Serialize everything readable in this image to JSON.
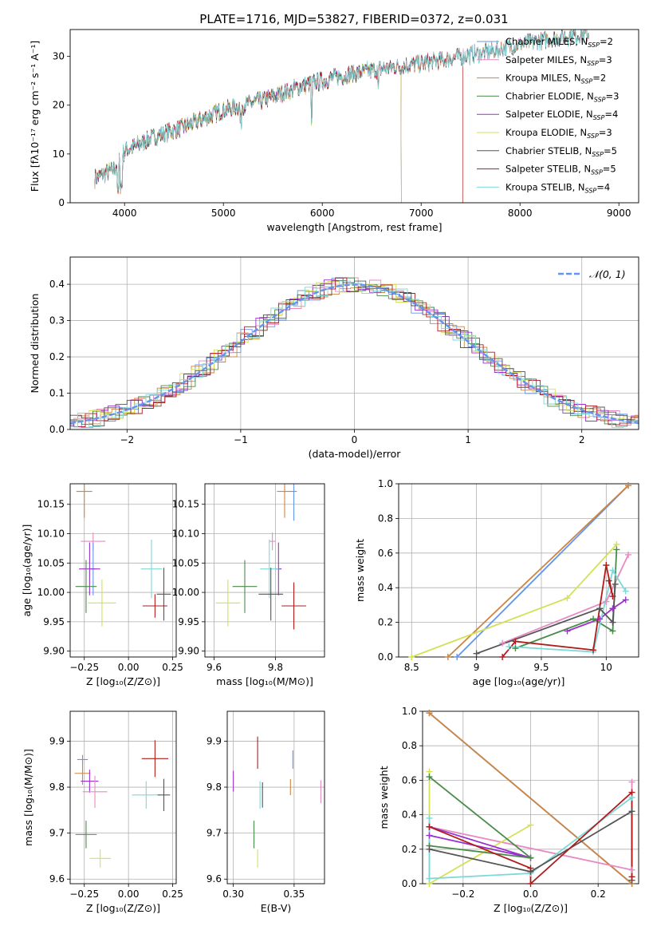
{
  "figure_title": "PLATE=1716, MJD=53827, FIBERID=0372, z=0.031",
  "colors": {
    "chabrier_miles": "#6495ed",
    "salpeter_miles": "#e78ac3",
    "kroupa_miles": "#cd853f",
    "chabrier_elodie": "#4a8a4a",
    "salpeter_elodie": "#9932cc",
    "kroupa_elodie": "#d4e157",
    "chabrier_stelib": "#555555",
    "salpeter_stelib": "#b01c1c",
    "kroupa_stelib": "#7fd8d8"
  },
  "chart_data": [
    {
      "id": "spectrum",
      "type": "line",
      "title": "PLATE=1716, MJD=53827, FIBERID=0372, z=0.031",
      "xlabel": "wavelength [Angstrom, rest frame]",
      "ylabel": "Flux [fλ10⁻¹⁷ erg cm⁻² s⁻¹ A⁻¹]",
      "xlim": [
        3450,
        9200
      ],
      "ylim": [
        0,
        35.5
      ],
      "xticks": [
        4000,
        5000,
        6000,
        7000,
        8000,
        9000
      ],
      "yticks": [
        0,
        10,
        20,
        30
      ],
      "legend_position": "top-right",
      "continuum_points": {
        "x": [
          3700,
          3900,
          4000,
          4300,
          4600,
          5000,
          5400,
          5800,
          6200,
          6600,
          7000,
          7400,
          7700,
          8000,
          8300,
          8600
        ],
        "y": [
          5,
          7,
          10.5,
          13.5,
          15.5,
          19,
          21,
          24,
          26,
          27.5,
          28.5,
          30,
          31,
          32.5,
          33.5,
          34.5
        ]
      },
      "series": [
        {
          "name": "Chabrier MILES, N_SSP=2",
          "color_key": "chabrier_miles",
          "x_range": [
            3700,
            8700
          ]
        },
        {
          "name": "Salpeter MILES, N_SSP=3",
          "color_key": "salpeter_miles",
          "x_range": [
            3700,
            8700
          ]
        },
        {
          "name": "Kroupa MILES, N_SSP=2",
          "color_key": "kroupa_miles",
          "x_range": [
            3700,
            8700
          ]
        },
        {
          "name": "Chabrier ELODIE, N_SSP=3",
          "color_key": "chabrier_elodie",
          "x_range": [
            3700,
            6800
          ]
        },
        {
          "name": "Salpeter ELODIE, N_SSP=4",
          "color_key": "salpeter_elodie",
          "x_range": [
            3700,
            6800
          ]
        },
        {
          "name": "Kroupa ELODIE, N_SSP=3",
          "color_key": "kroupa_elodie",
          "x_range": [
            3700,
            6800
          ]
        },
        {
          "name": "Chabrier STELIB, N_SSP=5",
          "color_key": "chabrier_stelib",
          "x_range": [
            3700,
            8700
          ]
        },
        {
          "name": "Salpeter STELIB, N_SSP=5",
          "color_key": "salpeter_stelib",
          "x_range": [
            3700,
            7420
          ]
        },
        {
          "name": "Kroupa STELIB, N_SSP=4",
          "color_key": "kroupa_stelib",
          "x_range": [
            3700,
            8700
          ]
        }
      ]
    },
    {
      "id": "residuals",
      "type": "line",
      "xlabel": "(data-model)/error",
      "ylabel": "Normed distribution",
      "xlim": [
        -2.5,
        2.5
      ],
      "ylim": [
        0,
        0.475
      ],
      "xticks": [
        -2,
        -1,
        0,
        1,
        2
      ],
      "yticks": [
        0.0,
        0.1,
        0.2,
        0.3,
        0.4
      ],
      "grid": true,
      "legend_position": "top-right",
      "reference": {
        "name": "𝒩(0, 1)",
        "color_key": "chabrier_miles",
        "style": "dashed",
        "mu": 0,
        "sigma": 1
      }
    },
    {
      "id": "age_vs_Z",
      "type": "scatter",
      "xlabel": "Z [log₁₀(Z/Z⊙)]",
      "ylabel": "age  [log₁₀(age/yr)]",
      "xlim": [
        -0.33,
        0.27
      ],
      "ylim": [
        9.89,
        10.185
      ],
      "xticks": [
        -0.25,
        0.0,
        0.25
      ],
      "xtick_labels": [
        "−0.25",
        "0.00",
        "0.25"
      ],
      "yticks": [
        9.9,
        9.95,
        10.0,
        10.05,
        10.1,
        10.15
      ],
      "grid": true,
      "points": [
        {
          "color_key": "kroupa_miles",
          "x": -0.25,
          "xerr": 0.045,
          "y": 10.172,
          "yerr": 0.09
        },
        {
          "color_key": "salpeter_miles",
          "x": -0.2,
          "xerr": 0.07,
          "y": 10.087,
          "yerr": 0.03
        },
        {
          "color_key": "chabrier_miles",
          "x": -0.2,
          "xerr": 0.015,
          "y": 10.04,
          "yerr": 0.09
        },
        {
          "color_key": "salpeter_elodie",
          "x": -0.22,
          "xerr": 0.06,
          "y": 10.04,
          "yerr": 0.09
        },
        {
          "color_key": "chabrier_elodie",
          "x": -0.24,
          "xerr": 0.06,
          "y": 10.01,
          "yerr": 0.09
        },
        {
          "color_key": "kroupa_elodie",
          "x": -0.15,
          "xerr": 0.08,
          "y": 9.982,
          "yerr": 0.08
        },
        {
          "color_key": "kroupa_stelib",
          "x": 0.13,
          "xerr": 0.06,
          "y": 10.04,
          "yerr": 0.1
        },
        {
          "color_key": "chabrier_stelib",
          "x": 0.2,
          "xerr": 0.04,
          "y": 9.997,
          "yerr": 0.09
        },
        {
          "color_key": "salpeter_stelib",
          "x": 0.15,
          "xerr": 0.07,
          "y": 9.977,
          "yerr": 0.04
        }
      ]
    },
    {
      "id": "age_vs_mass",
      "type": "scatter",
      "xlabel": "mass [log₁₀(M/M⊙)]",
      "ylabel": "",
      "xlim": [
        9.57,
        9.96
      ],
      "ylim": [
        9.89,
        10.185
      ],
      "xticks": [
        9.6,
        9.8
      ],
      "yticks": [
        9.9,
        9.95,
        10.0,
        10.05,
        10.1,
        10.15
      ],
      "grid": true,
      "points": [
        {
          "color_key": "chabrier_miles",
          "x": 9.86,
          "xerr": 0.01,
          "y": 10.172,
          "yerr": 0.1
        },
        {
          "color_key": "kroupa_miles",
          "x": 9.83,
          "xerr": 0.025,
          "y": 10.172,
          "yerr": 0.09
        },
        {
          "color_key": "salpeter_miles",
          "x": 9.79,
          "xerr": 0.01,
          "y": 10.087,
          "yerr": 0.03
        },
        {
          "color_key": "salpeter_elodie",
          "x": 9.81,
          "xerr": 0.01,
          "y": 10.04,
          "yerr": 0.09
        },
        {
          "color_key": "kroupa_stelib",
          "x": 9.78,
          "xerr": 0.03,
          "y": 10.04,
          "yerr": 0.1
        },
        {
          "color_key": "chabrier_elodie",
          "x": 9.7,
          "xerr": 0.04,
          "y": 10.01,
          "yerr": 0.09
        },
        {
          "color_key": "kroupa_elodie",
          "x": 9.645,
          "xerr": 0.04,
          "y": 9.982,
          "yerr": 0.08
        },
        {
          "color_key": "chabrier_stelib",
          "x": 9.785,
          "xerr": 0.04,
          "y": 9.997,
          "yerr": 0.09
        },
        {
          "color_key": "salpeter_stelib",
          "x": 9.86,
          "xerr": 0.04,
          "y": 9.977,
          "yerr": 0.08
        }
      ]
    },
    {
      "id": "mass_weight_vs_age",
      "type": "line",
      "xlabel": "age  [log₁₀(age/yr)]",
      "ylabel": "mass weight",
      "xlim": [
        8.4,
        10.25
      ],
      "ylim": [
        0,
        1.0
      ],
      "xticks": [
        8.5,
        9.0,
        9.5,
        10.0
      ],
      "yticks": [
        0.0,
        0.2,
        0.4,
        0.6,
        0.8,
        1.0
      ],
      "grid": true,
      "series": [
        {
          "color_key": "chabrier_miles",
          "x": [
            8.85,
            10.17
          ],
          "y": [
            0.0,
            0.99
          ]
        },
        {
          "color_key": "kroupa_miles",
          "x": [
            8.78,
            10.17
          ],
          "y": [
            0.0,
            0.99
          ]
        },
        {
          "color_key": "salpeter_miles",
          "x": [
            9.2,
            10.0,
            10.17
          ],
          "y": [
            0.08,
            0.32,
            0.59
          ]
        },
        {
          "color_key": "kroupa_elodie",
          "x": [
            8.5,
            9.7,
            10.08
          ],
          "y": [
            0.0,
            0.34,
            0.65
          ]
        },
        {
          "color_key": "salpeter_elodie",
          "x": [
            9.7,
            9.95,
            10.05,
            10.15
          ],
          "y": [
            0.15,
            0.22,
            0.28,
            0.33
          ]
        },
        {
          "color_key": "chabrier_elodie",
          "x": [
            9.3,
            9.9,
            10.05,
            10.08
          ],
          "y": [
            0.05,
            0.22,
            0.15,
            0.62
          ]
        },
        {
          "color_key": "kroupa_stelib",
          "x": [
            9.25,
            9.9,
            10.05,
            10.15
          ],
          "y": [
            0.06,
            0.03,
            0.5,
            0.38
          ]
        },
        {
          "color_key": "chabrier_stelib",
          "x": [
            9.0,
            9.95,
            10.05,
            10.07
          ],
          "y": [
            0.02,
            0.28,
            0.2,
            0.42
          ]
        },
        {
          "color_key": "salpeter_stelib",
          "x": [
            9.2,
            9.3,
            9.9,
            10.0,
            10.05,
            10.02
          ],
          "y": [
            0.0,
            0.09,
            0.04,
            0.53,
            0.35,
            0.44
          ]
        }
      ]
    },
    {
      "id": "mass_vs_Z",
      "type": "scatter",
      "xlabel": "Z [log₁₀(Z/Z⊙)]",
      "ylabel": "mass [log₁₀(M/M⊙)]",
      "xlim": [
        -0.33,
        0.27
      ],
      "ylim": [
        9.59,
        9.965
      ],
      "xticks": [
        -0.25,
        0.0,
        0.25
      ],
      "xtick_labels": [
        "−0.25",
        "0.00",
        "0.25"
      ],
      "yticks": [
        9.6,
        9.7,
        9.8,
        9.9
      ],
      "grid": true,
      "points": [
        {
          "color_key": "chabrier_miles",
          "x": -0.26,
          "xerr": 0.03,
          "y": 9.86,
          "yerr": 0.02
        },
        {
          "color_key": "kroupa_miles",
          "x": -0.26,
          "xerr": 0.045,
          "y": 9.83,
          "yerr": 0.05
        },
        {
          "color_key": "salpeter_elodie",
          "x": -0.22,
          "xerr": 0.05,
          "y": 9.813,
          "yerr": 0.05
        },
        {
          "color_key": "salpeter_miles",
          "x": -0.19,
          "xerr": 0.07,
          "y": 9.79,
          "yerr": 0.07
        },
        {
          "color_key": "chabrier_elodie",
          "x": -0.24,
          "xerr": 0.06,
          "y": 9.697,
          "yerr": 0.06
        },
        {
          "color_key": "kroupa_elodie",
          "x": -0.16,
          "xerr": 0.06,
          "y": 9.645,
          "yerr": 0.04
        },
        {
          "color_key": "salpeter_stelib",
          "x": 0.15,
          "xerr": 0.075,
          "y": 9.862,
          "yerr": 0.08
        },
        {
          "color_key": "kroupa_stelib",
          "x": 0.1,
          "xerr": 0.08,
          "y": 9.783,
          "yerr": 0.06
        },
        {
          "color_key": "chabrier_stelib",
          "x": 0.2,
          "xerr": 0.035,
          "y": 9.783,
          "yerr": 0.07
        }
      ]
    },
    {
      "id": "mass_vs_EBV",
      "type": "scatter",
      "xlabel": "E(B-V)",
      "ylabel": "",
      "xlim": [
        0.295,
        0.375
      ],
      "ylim": [
        9.59,
        9.965
      ],
      "xticks": [
        0.3,
        0.35
      ],
      "xtick_labels": [
        "0.30",
        "0.35"
      ],
      "yticks": [
        9.6,
        9.7,
        9.8,
        9.9
      ],
      "grid": true,
      "points": [
        {
          "color_key": "salpeter_elodie",
          "x": 0.3,
          "y": 9.813,
          "yerr": 0.045
        },
        {
          "color_key": "chabrier_elodie",
          "x": 0.317,
          "y": 9.697,
          "yerr": 0.06
        },
        {
          "color_key": "kroupa_elodie",
          "x": 0.32,
          "y": 9.645,
          "yerr": 0.04
        },
        {
          "color_key": "salpeter_stelib",
          "x": 0.32,
          "y": 9.875,
          "yerr": 0.07
        },
        {
          "color_key": "kroupa_stelib",
          "x": 0.322,
          "y": 9.783,
          "yerr": 0.06
        },
        {
          "color_key": "chabrier_stelib",
          "x": 0.324,
          "y": 9.783,
          "yerr": 0.055
        },
        {
          "color_key": "chabrier_miles",
          "x": 0.349,
          "y": 9.86,
          "yerr": 0.04
        },
        {
          "color_key": "kroupa_miles",
          "x": 0.347,
          "y": 9.8,
          "yerr": 0.035
        },
        {
          "color_key": "salpeter_miles",
          "x": 0.372,
          "y": 9.79,
          "yerr": 0.05
        }
      ]
    },
    {
      "id": "mass_weight_vs_Z",
      "type": "line",
      "xlabel": "Z [log₁₀(Z/Z⊙)]",
      "ylabel": "mass weight",
      "xlim": [
        -0.32,
        0.32
      ],
      "ylim": [
        0,
        1.0
      ],
      "xticks": [
        -0.2,
        0.0,
        0.2
      ],
      "xtick_labels": [
        "−0.2",
        "0.0",
        "0.2"
      ],
      "yticks": [
        0.0,
        0.2,
        0.4,
        0.6,
        0.8,
        1.0
      ],
      "grid": true,
      "series": [
        {
          "color_key": "chabrier_miles",
          "x": [
            -0.3,
            0.3
          ],
          "y": [
            0.99,
            0.0
          ]
        },
        {
          "color_key": "kroupa_miles",
          "x": [
            -0.3,
            0.3
          ],
          "y": [
            0.99,
            0.0
          ]
        },
        {
          "color_key": "salpeter_miles",
          "x": [
            -0.3,
            0.3,
            0.3
          ],
          "y": [
            0.33,
            0.08,
            0.59
          ]
        },
        {
          "color_key": "kroupa_elodie",
          "x": [
            -0.3,
            -0.3,
            0.0
          ],
          "y": [
            0.65,
            0.0,
            0.34
          ]
        },
        {
          "color_key": "salpeter_elodie",
          "x": [
            -0.3,
            0.0,
            -0.3
          ],
          "y": [
            0.33,
            0.15,
            0.28
          ]
        },
        {
          "color_key": "chabrier_elodie",
          "x": [
            -0.3,
            0.0,
            -0.3
          ],
          "y": [
            0.62,
            0.15,
            0.22
          ]
        },
        {
          "color_key": "kroupa_stelib",
          "x": [
            -0.3,
            -0.3,
            0.0,
            0.3
          ],
          "y": [
            0.38,
            0.03,
            0.06,
            0.5
          ]
        },
        {
          "color_key": "chabrier_stelib",
          "x": [
            -0.3,
            0.0,
            0.3,
            0.3
          ],
          "y": [
            0.2,
            0.07,
            0.42,
            0.02
          ]
        },
        {
          "color_key": "salpeter_stelib",
          "x": [
            -0.3,
            0.0,
            0.0,
            0.3,
            0.3
          ],
          "y": [
            0.33,
            0.09,
            0.0,
            0.53,
            0.04
          ]
        }
      ]
    }
  ]
}
